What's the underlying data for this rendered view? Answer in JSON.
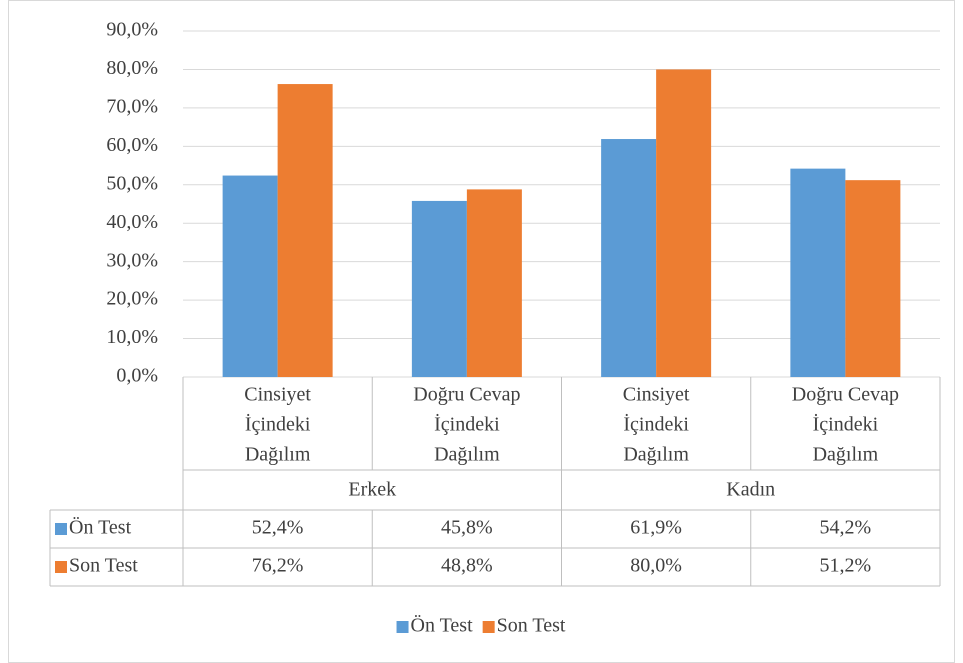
{
  "chart_data": {
    "type": "bar",
    "categories": [
      [
        "Cinsiyet",
        "İçindeki",
        "Dağılım"
      ],
      [
        "Doğru Cevap",
        "İçindeki",
        "Dağılım"
      ],
      [
        "Cinsiyet",
        "İçindeki",
        "Dağılım"
      ],
      [
        "Doğru Cevap",
        "İçindeki",
        "Dağılım"
      ]
    ],
    "groups": [
      {
        "name": "Erkek",
        "span": 2
      },
      {
        "name": "Kadın",
        "span": 2
      }
    ],
    "series": [
      {
        "name": "Ön Test",
        "color": "#5b9bd5",
        "values": [
          52.4,
          45.8,
          61.9,
          54.2
        ],
        "value_labels": [
          "52,4%",
          "45,8%",
          "61,9%",
          "54,2%"
        ]
      },
      {
        "name": "Son Test",
        "color": "#ed7d31",
        "values": [
          76.2,
          48.8,
          80.0,
          51.2
        ],
        "value_labels": [
          "76,2%",
          "48,8%",
          "80,0%",
          "51,2%"
        ]
      }
    ],
    "ylim": [
      0,
      90
    ],
    "yticks": [
      {
        "value": 0,
        "label": "0,0%"
      },
      {
        "value": 10,
        "label": "10,0%"
      },
      {
        "value": 20,
        "label": "20,0%"
      },
      {
        "value": 30,
        "label": "30,0%"
      },
      {
        "value": 40,
        "label": "40,0%"
      },
      {
        "value": 50,
        "label": "50,0%"
      },
      {
        "value": 60,
        "label": "60,0%"
      },
      {
        "value": 70,
        "label": "70,0%"
      },
      {
        "value": 80,
        "label": "80,0%"
      },
      {
        "value": 90,
        "label": "90,0%"
      }
    ],
    "grid": true,
    "legend": "bottom"
  }
}
